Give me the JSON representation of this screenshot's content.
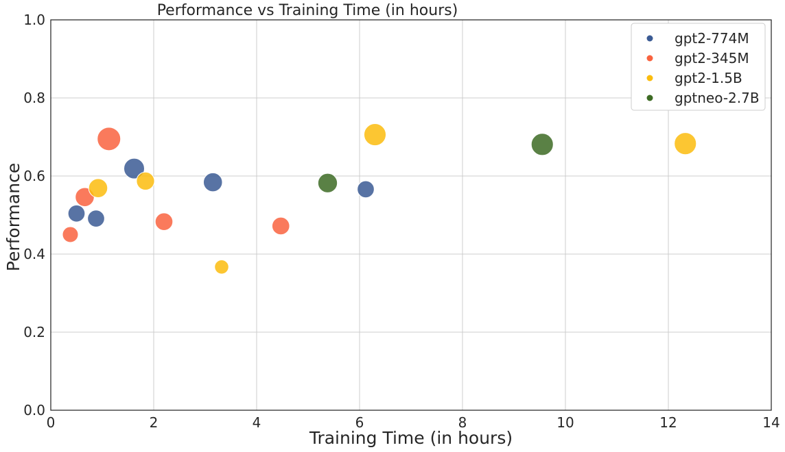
{
  "chart_data": {
    "type": "scatter",
    "title": "Performance vs Training Time (in hours)",
    "xlabel": "Training Time (in hours)",
    "ylabel": "Performance",
    "xlim": [
      0,
      14
    ],
    "ylim": [
      0,
      1.0
    ],
    "xticks": [
      0,
      2,
      4,
      6,
      8,
      10,
      12,
      14
    ],
    "yticks": [
      0.0,
      0.2,
      0.4,
      0.6,
      0.8,
      1.0
    ],
    "xtick_labels": [
      "0",
      "2",
      "4",
      "6",
      "8",
      "10",
      "12",
      "14"
    ],
    "ytick_labels": [
      "0.0",
      "0.2",
      "0.4",
      "0.6",
      "0.8",
      "1.0"
    ],
    "grid": true,
    "legend_position": "top-right",
    "series": [
      {
        "name": "gpt2-774M",
        "color": "#3b5b94",
        "points": [
          {
            "x": 0.5,
            "y": 0.504,
            "size": 2
          },
          {
            "x": 0.88,
            "y": 0.491,
            "size": 2
          },
          {
            "x": 1.62,
            "y": 0.619,
            "size": 4
          },
          {
            "x": 3.15,
            "y": 0.584,
            "size": 3
          },
          {
            "x": 6.12,
            "y": 0.566,
            "size": 2
          }
        ]
      },
      {
        "name": "gpt2-345M",
        "color": "#f9633f",
        "points": [
          {
            "x": 0.38,
            "y": 0.45,
            "size": 1.5
          },
          {
            "x": 0.66,
            "y": 0.546,
            "size": 3
          },
          {
            "x": 1.13,
            "y": 0.695,
            "size": 6
          },
          {
            "x": 2.2,
            "y": 0.483,
            "size": 2.3
          },
          {
            "x": 4.47,
            "y": 0.472,
            "size": 2.3
          }
        ]
      },
      {
        "name": "gpt2-1.5B",
        "color": "#fbbc0e",
        "points": [
          {
            "x": 0.92,
            "y": 0.569,
            "size": 3
          },
          {
            "x": 1.84,
            "y": 0.587,
            "size": 2.5
          },
          {
            "x": 3.32,
            "y": 0.367,
            "size": 0.9
          },
          {
            "x": 6.3,
            "y": 0.706,
            "size": 5
          },
          {
            "x": 12.33,
            "y": 0.683,
            "size": 5
          }
        ]
      },
      {
        "name": "gptneo-2.7B",
        "color": "#3d6b24",
        "points": [
          {
            "x": 5.38,
            "y": 0.582,
            "size": 3.3
          },
          {
            "x": 9.55,
            "y": 0.681,
            "size": 5
          }
        ]
      }
    ]
  }
}
